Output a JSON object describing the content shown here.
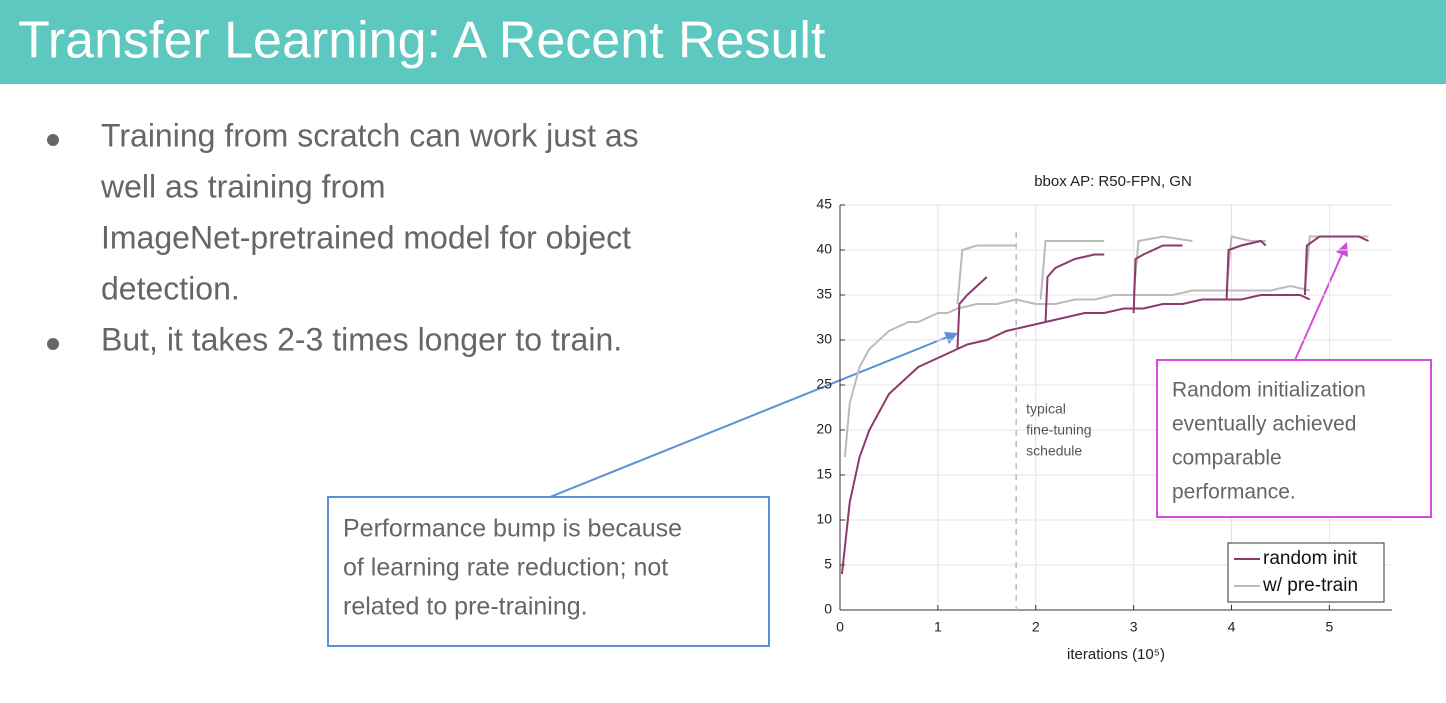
{
  "slide": {
    "title": "Transfer Learning: A Recent Result",
    "bullets": [
      [
        "Training from scratch can work just as",
        "well as training from",
        "ImageNet-pretrained model for object",
        "detection."
      ],
      [
        "But, it takes 2-3 times longer to train."
      ]
    ],
    "callout_left": [
      "Performance bump is because",
      "of learning rate reduction; not",
      "related to pre-training."
    ],
    "callout_right": [
      "Random initialization",
      "eventually achieved",
      "comparable",
      "performance."
    ]
  },
  "chart_data": {
    "type": "line",
    "title": "bbox AP: R50-FPN, GN",
    "xlabel": "iterations (10⁵)",
    "xlim": [
      0,
      5.64
    ],
    "ylim": [
      0,
      45
    ],
    "xticks": [
      0,
      1,
      2,
      3,
      4,
      5
    ],
    "yticks": [
      0,
      5,
      10,
      15,
      20,
      25,
      30,
      35,
      40,
      45
    ],
    "grid": true,
    "legend": "lower right",
    "annotation": {
      "x": 1.8,
      "lines": [
        "typical",
        "fine-tuning",
        "schedule"
      ]
    },
    "series": [
      {
        "name": "random init",
        "color": "#8b3a6b",
        "x": [
          0.02,
          0.1,
          0.2,
          0.3,
          0.4,
          0.5,
          0.6,
          0.7,
          0.8,
          0.9,
          1.0,
          1.1,
          1.2,
          1.3,
          1.5,
          1.7,
          1.9,
          2.1,
          2.3,
          2.5,
          2.7,
          2.9,
          3.1,
          3.3,
          3.5,
          3.7,
          3.9,
          4.1,
          4.3,
          4.5,
          4.7,
          4.8
        ],
        "values": [
          4,
          12,
          17,
          20,
          22,
          24,
          25,
          26,
          27,
          27.5,
          28,
          28.5,
          29,
          29.5,
          30,
          31,
          31.5,
          32,
          32.5,
          33,
          33,
          33.5,
          33.5,
          34,
          34,
          34.5,
          34.5,
          34.5,
          35,
          35,
          35,
          34.5
        ]
      },
      {
        "name": "w/ pre-train",
        "color": "#bbbbbb",
        "x": [
          0.05,
          0.1,
          0.2,
          0.3,
          0.4,
          0.5,
          0.6,
          0.7,
          0.8,
          0.9,
          1.0,
          1.1,
          1.2,
          1.4,
          1.6,
          1.8,
          2.0,
          2.2,
          2.4,
          2.6,
          2.8,
          3.0,
          3.2,
          3.4,
          3.6,
          3.8,
          4.0,
          4.2,
          4.4,
          4.6,
          4.8
        ],
        "values": [
          17,
          23,
          27,
          29,
          30,
          31,
          31.5,
          32,
          32,
          32.5,
          33,
          33,
          33.5,
          34,
          34,
          34.5,
          34,
          34,
          34.5,
          34.5,
          35,
          35,
          35,
          35,
          35.5,
          35.5,
          35.5,
          35.5,
          35.5,
          36,
          35.5
        ]
      },
      {
        "color": "#8b3a6b",
        "x": [
          1.2,
          1.22,
          1.3,
          1.45,
          1.5
        ],
        "values": [
          29,
          34,
          35,
          36.5,
          37
        ]
      },
      {
        "color": "#8b3a6b",
        "x": [
          2.1,
          2.12,
          2.2,
          2.4,
          2.6,
          2.7
        ],
        "values": [
          32,
          37,
          38,
          39,
          39.5,
          39.5
        ]
      },
      {
        "color": "#8b3a6b",
        "x": [
          3.0,
          3.02,
          3.1,
          3.3,
          3.5
        ],
        "values": [
          33,
          39,
          39.5,
          40.5,
          40.5
        ]
      },
      {
        "color": "#8b3a6b",
        "x": [
          3.95,
          3.97,
          4.1,
          4.3,
          4.35
        ],
        "values": [
          34.5,
          40,
          40.5,
          41,
          40.5
        ]
      },
      {
        "color": "#8b3a6b",
        "x": [
          4.75,
          4.77,
          4.9,
          5.1,
          5.3,
          5.4
        ],
        "values": [
          35,
          40.5,
          41.5,
          41.5,
          41.5,
          41
        ]
      },
      {
        "color": "#bbbbbb",
        "x": [
          1.2,
          1.25,
          1.4,
          1.6,
          1.8
        ],
        "values": [
          34,
          40,
          40.5,
          40.5,
          40.5
        ]
      },
      {
        "color": "#bbbbbb",
        "x": [
          2.05,
          2.1,
          2.3,
          2.5,
          2.7
        ],
        "values": [
          34.5,
          41,
          41,
          41,
          41
        ]
      },
      {
        "color": "#bbbbbb",
        "x": [
          3.0,
          3.05,
          3.3,
          3.6
        ],
        "values": [
          35,
          41,
          41.5,
          41
        ]
      },
      {
        "color": "#bbbbbb",
        "x": [
          3.95,
          4.0,
          4.2,
          4.35
        ],
        "values": [
          35.5,
          41.5,
          41,
          41
        ]
      },
      {
        "color": "#bbbbbb",
        "x": [
          4.75,
          4.8,
          5.0,
          5.4
        ],
        "values": [
          35.5,
          41.5,
          41.5,
          41.5
        ]
      }
    ]
  }
}
